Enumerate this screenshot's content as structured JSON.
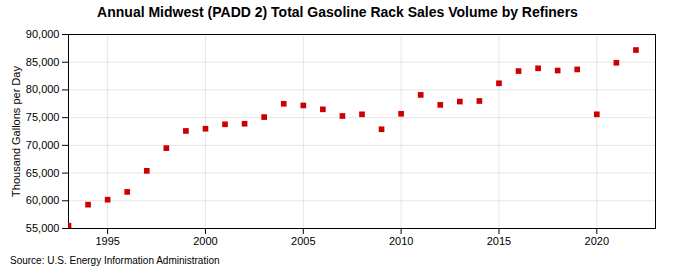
{
  "chart_data": {
    "type": "scatter",
    "title": "Annual Midwest (PADD 2) Total Gasoline Rack Sales Volume by Refiners",
    "ylabel": "Thousand Gallons per Day",
    "annotations": [
      "Source: U.S. Energy Information Administration"
    ],
    "x": [
      1993,
      1994,
      1995,
      1996,
      1997,
      1998,
      1999,
      2000,
      2001,
      2002,
      2003,
      2004,
      2005,
      2006,
      2007,
      2008,
      2009,
      2010,
      2011,
      2012,
      2013,
      2014,
      2015,
      2016,
      2017,
      2018,
      2019,
      2020,
      2021,
      2022
    ],
    "values": [
      55500,
      59300,
      60200,
      61600,
      65400,
      69500,
      72600,
      73000,
      73800,
      73900,
      75100,
      77500,
      77200,
      76500,
      75300,
      75600,
      72900,
      75700,
      79100,
      77300,
      77900,
      78000,
      81200,
      83400,
      83900,
      83500,
      83700,
      75600,
      84900,
      87200
    ],
    "color": "#cc0000",
    "marker": "square",
    "grid": true,
    "xlim": [
      1993,
      2023
    ],
    "ylim": [
      55000,
      90000
    ],
    "xticks": [
      1995,
      2000,
      2005,
      2010,
      2015,
      2020
    ],
    "yticks": [
      {
        "value": 55000,
        "label": "55,000"
      },
      {
        "value": 60000,
        "label": "60,000"
      },
      {
        "value": 65000,
        "label": "65,000"
      },
      {
        "value": 70000,
        "label": "70,000"
      },
      {
        "value": 75000,
        "label": "75,000"
      },
      {
        "value": 80000,
        "label": "80,000"
      },
      {
        "value": 85000,
        "label": "85,000"
      },
      {
        "value": 90000,
        "label": "90,000"
      }
    ]
  }
}
